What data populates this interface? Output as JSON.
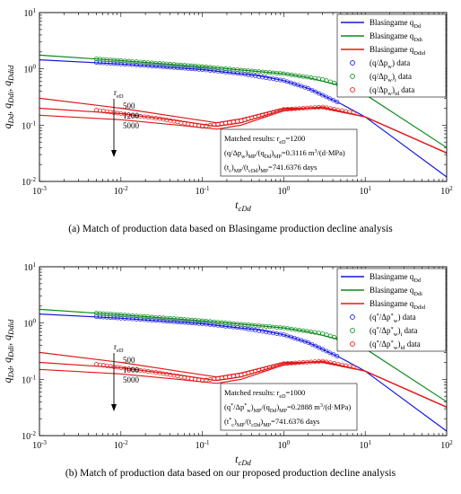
{
  "colors": {
    "blue": "#1515e0",
    "green": "#0c8a1c",
    "red": "#e01818"
  },
  "chart_data": [
    {
      "type": "line",
      "caption": "(a)  Match of production data based on Blasingame production decline analysis",
      "xlabel": "t_cDd",
      "ylabel": "q_Dd, q_Ddi, q_Ddid",
      "xscale": "log",
      "yscale": "log",
      "xlim": [
        0.001,
        100
      ],
      "ylim": [
        0.01,
        10
      ],
      "legend_position": "top-right",
      "legend": [
        {
          "label": "Blasingame q_Dd",
          "kind": "line",
          "color": "#1515e0"
        },
        {
          "label": "Blasingame q_Ddi",
          "kind": "line",
          "color": "#0c8a1c"
        },
        {
          "label": "Blasingame q_Ddid",
          "kind": "line",
          "color": "#e01818"
        },
        {
          "label": "(q/Δp_w) data",
          "kind": "marker",
          "color": "#1515e0"
        },
        {
          "label": "(q/Δp_w)_i data",
          "kind": "marker",
          "color": "#0c8a1c"
        },
        {
          "label": "(q/Δp_w)_id data",
          "kind": "marker",
          "color": "#e01818"
        }
      ],
      "reD_label": "r_eD",
      "reD_values": [
        "500",
        "1200",
        "5000"
      ],
      "annotation_lines": [
        "Matched results: r_eD=1200",
        "(q/Δp_w)_MP/(q_Dd)_MP=0.3116 m³/(d·MPa)",
        "(t_c)_MP/(t_cDd)_MP=741.6376 days"
      ],
      "series": [
        {
          "name": "Blasingame q_Dd",
          "color": "#1515e0",
          "x": [
            0.001,
            0.01,
            0.1,
            0.5,
            1,
            2,
            5,
            10,
            100
          ],
          "y": [
            1.45,
            1.22,
            0.97,
            0.75,
            0.62,
            0.45,
            0.24,
            0.14,
            0.012
          ]
        },
        {
          "name": "Blasingame q_Ddi",
          "color": "#0c8a1c",
          "x": [
            0.001,
            0.01,
            0.1,
            1,
            2,
            5,
            10,
            100
          ],
          "y": [
            1.75,
            1.4,
            1.1,
            0.82,
            0.7,
            0.5,
            0.35,
            0.04
          ]
        },
        {
          "name": "r_eD = 500 (q_Ddid)",
          "color": "#e01818",
          "x": [
            0.001,
            0.01,
            0.05,
            0.15,
            0.3,
            1,
            3,
            10,
            100
          ],
          "y": [
            0.3,
            0.2,
            0.14,
            0.11,
            0.13,
            0.2,
            0.2,
            0.14,
            0.032
          ]
        },
        {
          "name": "r_eD = 1200 (q_Ddid)",
          "color": "#e01818",
          "x": [
            0.001,
            0.01,
            0.05,
            0.15,
            0.3,
            1,
            3,
            10,
            100
          ],
          "y": [
            0.2,
            0.16,
            0.12,
            0.095,
            0.11,
            0.19,
            0.21,
            0.14,
            0.032
          ]
        },
        {
          "name": "r_eD = 5000 (q_Ddid)",
          "color": "#e01818",
          "x": [
            0.001,
            0.01,
            0.05,
            0.15,
            0.3,
            1,
            3,
            10,
            100
          ],
          "y": [
            0.15,
            0.125,
            0.1,
            0.085,
            0.1,
            0.18,
            0.21,
            0.14,
            0.032
          ]
        },
        {
          "name": "(q/Δp_w) data",
          "kind": "markers",
          "color": "#1515e0",
          "x": [
            0.005,
            0.01,
            0.03,
            0.1,
            0.3,
            1,
            2,
            5
          ],
          "y": [
            1.3,
            1.22,
            1.1,
            0.97,
            0.82,
            0.62,
            0.45,
            0.24
          ]
        },
        {
          "name": "(q/Δp_w)_i data",
          "kind": "markers",
          "color": "#0c8a1c",
          "x": [
            0.005,
            0.01,
            0.03,
            0.1,
            0.3,
            1,
            3,
            8
          ],
          "y": [
            1.5,
            1.4,
            1.25,
            1.1,
            0.95,
            0.82,
            0.65,
            0.42
          ]
        },
        {
          "name": "(q/Δp_w)_id data",
          "kind": "markers",
          "color": "#e01818",
          "x": [
            0.005,
            0.01,
            0.03,
            0.1,
            0.3,
            1,
            3,
            8
          ],
          "y": [
            0.185,
            0.16,
            0.13,
            0.095,
            0.12,
            0.19,
            0.21,
            0.16
          ]
        }
      ]
    },
    {
      "type": "line",
      "caption": "(b)  Match of production data based on our proposed production decline analysis",
      "xlabel": "t_cDd",
      "ylabel": "q_Dd, q_Ddi, q_Ddid",
      "xscale": "log",
      "yscale": "log",
      "xlim": [
        0.001,
        100
      ],
      "ylim": [
        0.01,
        10
      ],
      "legend_position": "top-right",
      "legend": [
        {
          "label": "Blasingame q_Dd",
          "kind": "line",
          "color": "#1515e0"
        },
        {
          "label": "Blasingame q_Ddi",
          "kind": "line",
          "color": "#0c8a1c"
        },
        {
          "label": "Blasingame q_Ddid",
          "kind": "line",
          "color": "#e01818"
        },
        {
          "label": "(q*/Δp*_w) data",
          "kind": "marker",
          "color": "#1515e0"
        },
        {
          "label": "(q*/Δp*_w)_i data",
          "kind": "marker",
          "color": "#0c8a1c"
        },
        {
          "label": "(q*/Δp*_w)_id data",
          "kind": "marker",
          "color": "#e01818"
        }
      ],
      "reD_label": "r_eD",
      "reD_values": [
        "500",
        "1000",
        "5000"
      ],
      "annotation_lines": [
        "Matched results: r_eD=1000",
        "(q*/Δp*_w)_MP/(q_Dd)_MP=0.2888 m³/(d·MPa)",
        "(t*_c)_MP/(t_cDd)_MP=741.6376 days"
      ],
      "series": [
        {
          "name": "Blasingame q_Dd",
          "color": "#1515e0",
          "x": [
            0.001,
            0.01,
            0.1,
            0.5,
            1,
            2,
            5,
            10,
            100
          ],
          "y": [
            1.45,
            1.22,
            0.97,
            0.75,
            0.62,
            0.45,
            0.24,
            0.14,
            0.012
          ]
        },
        {
          "name": "Blasingame q_Ddi",
          "color": "#0c8a1c",
          "x": [
            0.001,
            0.01,
            0.1,
            1,
            2,
            5,
            10,
            100
          ],
          "y": [
            1.75,
            1.4,
            1.1,
            0.82,
            0.7,
            0.5,
            0.35,
            0.04
          ]
        },
        {
          "name": "r_eD = 500 (q_Ddid)",
          "color": "#e01818",
          "x": [
            0.001,
            0.01,
            0.05,
            0.15,
            0.3,
            1,
            3,
            10,
            100
          ],
          "y": [
            0.3,
            0.2,
            0.14,
            0.11,
            0.13,
            0.2,
            0.2,
            0.14,
            0.032
          ]
        },
        {
          "name": "r_eD = 1000 (q_Ddid)",
          "color": "#e01818",
          "x": [
            0.001,
            0.01,
            0.05,
            0.15,
            0.3,
            1,
            3,
            10,
            100
          ],
          "y": [
            0.2,
            0.16,
            0.12,
            0.095,
            0.11,
            0.19,
            0.21,
            0.14,
            0.032
          ]
        },
        {
          "name": "r_eD = 5000 (q_Ddid)",
          "color": "#e01818",
          "x": [
            0.001,
            0.01,
            0.05,
            0.15,
            0.3,
            1,
            3,
            10,
            100
          ],
          "y": [
            0.15,
            0.125,
            0.1,
            0.085,
            0.1,
            0.18,
            0.21,
            0.14,
            0.032
          ]
        },
        {
          "name": "(q*/Δp*_w) data",
          "kind": "markers",
          "color": "#1515e0",
          "x": [
            0.005,
            0.01,
            0.03,
            0.1,
            0.3,
            1,
            2,
            5
          ],
          "y": [
            1.3,
            1.22,
            1.1,
            0.97,
            0.82,
            0.62,
            0.45,
            0.24
          ]
        },
        {
          "name": "(q*/Δp*_w)_i data",
          "kind": "markers",
          "color": "#0c8a1c",
          "x": [
            0.005,
            0.01,
            0.03,
            0.1,
            0.3,
            1,
            3,
            8
          ],
          "y": [
            1.5,
            1.4,
            1.25,
            1.1,
            0.95,
            0.82,
            0.65,
            0.42
          ]
        },
        {
          "name": "(q*/Δp*_w)_id data",
          "kind": "markers",
          "color": "#e01818",
          "x": [
            0.005,
            0.01,
            0.03,
            0.1,
            0.3,
            1,
            3,
            8
          ],
          "y": [
            0.185,
            0.16,
            0.13,
            0.095,
            0.12,
            0.19,
            0.21,
            0.16
          ]
        }
      ]
    }
  ]
}
